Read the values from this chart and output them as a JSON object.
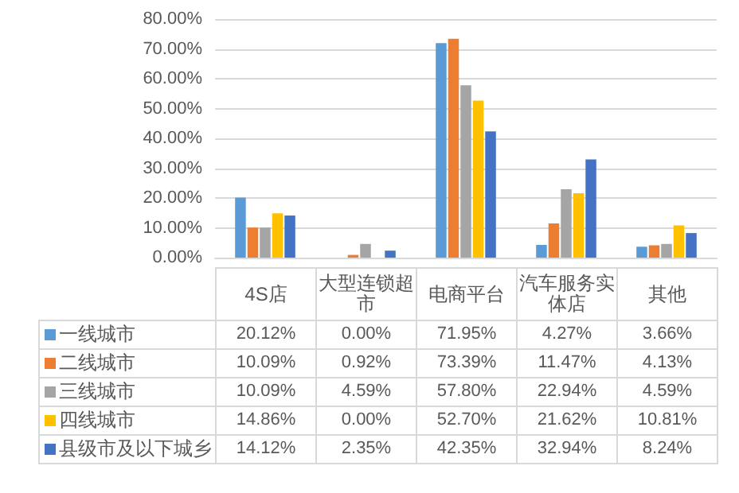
{
  "chart_data": {
    "type": "bar",
    "categories": [
      "4S店",
      "大型连锁超市",
      "电商平台",
      "汽车服务实体店",
      "其他"
    ],
    "series": [
      {
        "name": "一线城市",
        "color": "#5b9bd5",
        "values": [
          20.12,
          0.0,
          71.95,
          4.27,
          3.66
        ],
        "value_labels": [
          "20.12%",
          "0.00%",
          "71.95%",
          "4.27%",
          "3.66%"
        ]
      },
      {
        "name": "二线城市",
        "color": "#ed7d31",
        "values": [
          10.09,
          0.92,
          73.39,
          11.47,
          4.13
        ],
        "value_labels": [
          "10.09%",
          "0.92%",
          "73.39%",
          "11.47%",
          "4.13%"
        ]
      },
      {
        "name": "三线城市",
        "color": "#a5a5a5",
        "values": [
          10.09,
          4.59,
          57.8,
          22.94,
          4.59
        ],
        "value_labels": [
          "10.09%",
          "4.59%",
          "57.80%",
          "22.94%",
          "4.59%"
        ]
      },
      {
        "name": "四线城市",
        "color": "#ffc000",
        "values": [
          14.86,
          0.0,
          52.7,
          21.62,
          10.81
        ],
        "value_labels": [
          "14.86%",
          "0.00%",
          "52.70%",
          "21.62%",
          "10.81%"
        ]
      },
      {
        "name": "县级市及以下城乡",
        "color": "#4472c4",
        "values": [
          14.12,
          2.35,
          42.35,
          32.94,
          8.24
        ],
        "value_labels": [
          "14.12%",
          "2.35%",
          "42.35%",
          "32.94%",
          "8.24%"
        ]
      }
    ],
    "ylim": [
      0,
      80
    ],
    "yticks": [
      {
        "value": 0,
        "label": "0.00%"
      },
      {
        "value": 10,
        "label": "10.00%"
      },
      {
        "value": 20,
        "label": "20.00%"
      },
      {
        "value": 30,
        "label": "30.00%"
      },
      {
        "value": 40,
        "label": "40.00%"
      },
      {
        "value": 50,
        "label": "50.00%"
      },
      {
        "value": 60,
        "label": "60.00%"
      },
      {
        "value": 70,
        "label": "70.00%"
      },
      {
        "value": 80,
        "label": "80.00%"
      }
    ],
    "grid": "y",
    "legend": "bottom"
  }
}
